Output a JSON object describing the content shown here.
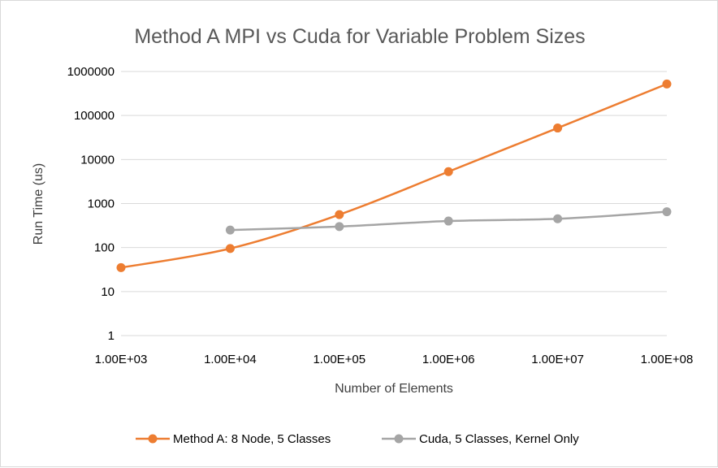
{
  "chart_data": {
    "type": "line",
    "title": "Method A MPI vs Cuda for Variable Problem Sizes",
    "xlabel": "Number of Elements",
    "ylabel": "Run Time (us)",
    "x_scale": "log",
    "y_scale": "log",
    "x_ticks": [
      "1.00E+03",
      "1.00E+04",
      "1.00E+05",
      "1.00E+06",
      "1.00E+07",
      "1.00E+08"
    ],
    "x_tick_values": [
      1000,
      10000,
      100000,
      1000000,
      10000000,
      100000000
    ],
    "y_ticks": [
      "1",
      "10",
      "100",
      "1000",
      "10000",
      "100000",
      "1000000"
    ],
    "y_tick_values": [
      1,
      10,
      100,
      1000,
      10000,
      100000,
      1000000
    ],
    "xlim": [
      1000,
      100000000
    ],
    "ylim": [
      1,
      1000000
    ],
    "grid": "horizontal",
    "legend_position": "bottom",
    "series": [
      {
        "name": "Method A: 8 Node, 5 Classes",
        "color": "#ed7d31",
        "x": [
          1000,
          10000,
          100000,
          1000000,
          10000000,
          100000000
        ],
        "y": [
          35,
          95,
          560,
          5300,
          52000,
          520000
        ]
      },
      {
        "name": "Cuda, 5 Classes,  Kernel Only",
        "color": "#a5a5a5",
        "x": [
          10000,
          100000,
          1000000,
          10000000,
          100000000
        ],
        "y": [
          250,
          300,
          400,
          450,
          650
        ]
      }
    ]
  }
}
